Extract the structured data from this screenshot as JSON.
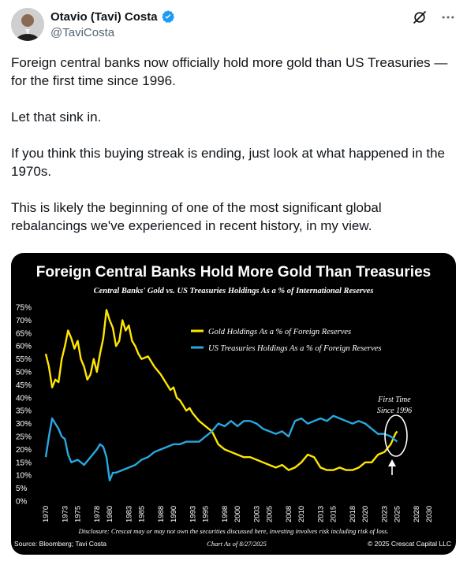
{
  "author": {
    "display_name": "Otavio (Tavi) Costa",
    "handle": "@TaviCosta",
    "verified_color": "#1d9bf0"
  },
  "icons": {
    "grok": "grok-icon",
    "more": "more-icon",
    "verified": "verified-badge-icon"
  },
  "tweet": {
    "paragraphs": [
      "Foreign central banks now officially hold more gold than US Treasuries — for the first time since 1996.",
      "Let that sink in.",
      "If you think this buying streak is ending, just look at what happened in the 1970s.",
      "This is likely the beginning of one of the most significant global rebalancings we've experienced in recent history, in my view."
    ]
  },
  "chart_data": {
    "type": "line",
    "title": "Foreign Central Banks Hold More Gold Than Treasuries",
    "subtitle": "Central Banks' Gold vs. US Treasuries Holdings As a % of International Reserves",
    "xlim": [
      1970,
      2030
    ],
    "ylim": [
      0,
      75
    ],
    "x_ticks": [
      1970,
      1973,
      1975,
      1978,
      1980,
      1983,
      1985,
      1988,
      1990,
      1993,
      1995,
      1998,
      2000,
      2003,
      2005,
      2008,
      2010,
      2013,
      2015,
      2018,
      2020,
      2023,
      2025,
      2028,
      2030
    ],
    "y_ticks": [
      "0%",
      "5%",
      "10%",
      "15%",
      "20%",
      "25%",
      "30%",
      "35%",
      "40%",
      "45%",
      "50%",
      "55%",
      "60%",
      "65%",
      "70%",
      "75%"
    ],
    "legend_position": "top-right",
    "series": [
      {
        "name": "Gold Holdings As a % of Foreign Reserves",
        "color": "#ffe600",
        "points": [
          [
            1970,
            57
          ],
          [
            1970.5,
            52
          ],
          [
            1971,
            44
          ],
          [
            1971.5,
            47
          ],
          [
            1972,
            46
          ],
          [
            1972.5,
            55
          ],
          [
            1973,
            60
          ],
          [
            1973.5,
            66
          ],
          [
            1974,
            63
          ],
          [
            1974.5,
            59
          ],
          [
            1975,
            62
          ],
          [
            1975.5,
            55
          ],
          [
            1976,
            52
          ],
          [
            1976.5,
            47
          ],
          [
            1977,
            49
          ],
          [
            1977.5,
            55
          ],
          [
            1978,
            50
          ],
          [
            1978.5,
            57
          ],
          [
            1979,
            63
          ],
          [
            1979.5,
            74
          ],
          [
            1980,
            70
          ],
          [
            1980.5,
            67
          ],
          [
            1981,
            60
          ],
          [
            1981.5,
            62
          ],
          [
            1982,
            70
          ],
          [
            1982.5,
            66
          ],
          [
            1983,
            68
          ],
          [
            1983.5,
            62
          ],
          [
            1984,
            60
          ],
          [
            1984.5,
            57
          ],
          [
            1985,
            55
          ],
          [
            1986,
            56
          ],
          [
            1986.5,
            54
          ],
          [
            1987,
            52
          ],
          [
            1988,
            49
          ],
          [
            1988.5,
            47
          ],
          [
            1989,
            45
          ],
          [
            1989.5,
            43
          ],
          [
            1990,
            44
          ],
          [
            1990.5,
            40
          ],
          [
            1991,
            39
          ],
          [
            1991.5,
            37
          ],
          [
            1992,
            35
          ],
          [
            1992.5,
            36
          ],
          [
            1993,
            34
          ],
          [
            1994,
            31
          ],
          [
            1995,
            29
          ],
          [
            1996,
            27
          ],
          [
            1997,
            22
          ],
          [
            1998,
            20
          ],
          [
            1999,
            19
          ],
          [
            2000,
            18
          ],
          [
            2001,
            17
          ],
          [
            2002,
            17
          ],
          [
            2003,
            16
          ],
          [
            2004,
            15
          ],
          [
            2005,
            14
          ],
          [
            2006,
            13
          ],
          [
            2007,
            14
          ],
          [
            2008,
            12
          ],
          [
            2009,
            13
          ],
          [
            2010,
            15
          ],
          [
            2011,
            18
          ],
          [
            2012,
            17
          ],
          [
            2013,
            13
          ],
          [
            2014,
            12
          ],
          [
            2015,
            12
          ],
          [
            2016,
            13
          ],
          [
            2017,
            12
          ],
          [
            2018,
            12
          ],
          [
            2019,
            13
          ],
          [
            2020,
            15
          ],
          [
            2021,
            15
          ],
          [
            2022,
            18
          ],
          [
            2023,
            19
          ],
          [
            2024,
            22
          ],
          [
            2024.7,
            26
          ],
          [
            2025,
            27
          ]
        ]
      },
      {
        "name": "US Treasuries Holdings As a % of Foreign Reserves",
        "color": "#29a8e0",
        "points": [
          [
            1970,
            17
          ],
          [
            1970.5,
            25
          ],
          [
            1971,
            32
          ],
          [
            1971.5,
            30
          ],
          [
            1972,
            28
          ],
          [
            1972.5,
            25
          ],
          [
            1973,
            24
          ],
          [
            1973.5,
            18
          ],
          [
            1974,
            15
          ],
          [
            1975,
            16
          ],
          [
            1976,
            14
          ],
          [
            1977,
            17
          ],
          [
            1978,
            20
          ],
          [
            1978.5,
            22
          ],
          [
            1979,
            21
          ],
          [
            1979.5,
            17
          ],
          [
            1980,
            8
          ],
          [
            1980.5,
            11
          ],
          [
            1981,
            11
          ],
          [
            1982,
            12
          ],
          [
            1983,
            13
          ],
          [
            1984,
            14
          ],
          [
            1985,
            16
          ],
          [
            1986,
            17
          ],
          [
            1987,
            19
          ],
          [
            1988,
            20
          ],
          [
            1989,
            21
          ],
          [
            1990,
            22
          ],
          [
            1991,
            22
          ],
          [
            1992,
            23
          ],
          [
            1993,
            23
          ],
          [
            1994,
            23
          ],
          [
            1995,
            25
          ],
          [
            1996,
            27
          ],
          [
            1997,
            30
          ],
          [
            1998,
            29
          ],
          [
            1999,
            31
          ],
          [
            2000,
            29
          ],
          [
            2001,
            31
          ],
          [
            2002,
            31
          ],
          [
            2003,
            30
          ],
          [
            2004,
            28
          ],
          [
            2005,
            27
          ],
          [
            2006,
            26
          ],
          [
            2007,
            27
          ],
          [
            2008,
            25
          ],
          [
            2009,
            31
          ],
          [
            2010,
            32
          ],
          [
            2011,
            30
          ],
          [
            2012,
            31
          ],
          [
            2013,
            32
          ],
          [
            2014,
            31
          ],
          [
            2015,
            33
          ],
          [
            2016,
            32
          ],
          [
            2017,
            31
          ],
          [
            2018,
            30
          ],
          [
            2019,
            31
          ],
          [
            2020,
            30
          ],
          [
            2021,
            28
          ],
          [
            2022,
            26
          ],
          [
            2023,
            26
          ],
          [
            2024,
            25
          ],
          [
            2025,
            23
          ]
        ]
      }
    ],
    "annotation": "First Time Since 1996",
    "disclosure": "Disclosure: Crescat may or may not own the securities discussed here, investing involves risk including risk of loss.",
    "source": "Source: Bloomberg; Tavi Costa",
    "chart_date": "Chart As of 8/27/2025",
    "copyright": "© 2025 Crescat Capital LLC"
  }
}
